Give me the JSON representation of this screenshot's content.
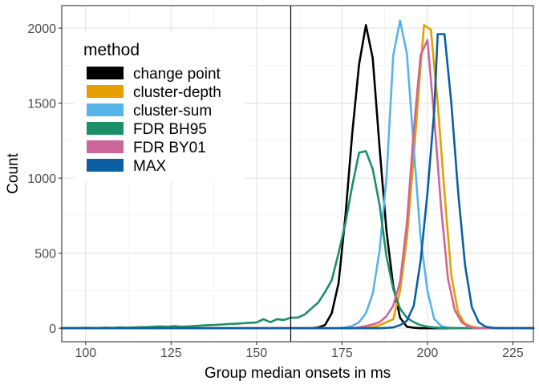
{
  "chart_data": {
    "type": "line",
    "xlabel": "Group median onsets in ms",
    "ylabel": "Count",
    "xlim": [
      93,
      231
    ],
    "ylim": [
      -90,
      2150
    ],
    "x_ticks": [
      100,
      125,
      150,
      175,
      200,
      225
    ],
    "y_ticks": [
      0,
      500,
      1000,
      1500,
      2000
    ],
    "x_tick_labels": [
      "100",
      "125",
      "150",
      "175",
      "200",
      "225"
    ],
    "y_tick_labels": [
      "0",
      "500",
      "1000",
      "1500",
      "2000"
    ],
    "vline": 160,
    "grid": true,
    "legend": {
      "title": "method",
      "placement": "top-left",
      "entries": [
        "change point",
        "cluster-depth",
        "cluster-sum",
        "FDR BH95",
        "FDR BY01",
        "MAX"
      ]
    },
    "series": [
      {
        "name": "change point",
        "color": "#000000",
        "x": [
          93,
          164,
          166,
          168,
          170,
          172,
          174,
          176,
          178,
          180,
          182,
          184,
          186,
          188,
          190,
          192,
          194,
          196,
          198,
          231
        ],
        "y": [
          0,
          0,
          0,
          5,
          20,
          100,
          300,
          750,
          1300,
          1760,
          2020,
          1800,
          1200,
          650,
          280,
          70,
          10,
          3,
          0,
          0
        ]
      },
      {
        "name": "cluster-depth",
        "color": "#E69F00",
        "x": [
          93,
          180,
          182,
          184,
          186,
          188,
          190,
          192,
          194,
          196,
          198,
          199,
          201,
          203,
          205,
          207,
          209,
          211,
          213,
          215,
          231
        ],
        "y": [
          0,
          0,
          2,
          8,
          20,
          40,
          60,
          250,
          600,
          1150,
          1750,
          2020,
          1990,
          1500,
          900,
          350,
          100,
          30,
          10,
          2,
          0
        ]
      },
      {
        "name": "cluster-sum",
        "color": "#56B4E9",
        "x": [
          93,
          174,
          176,
          178,
          180,
          182,
          184,
          186,
          188,
          190,
          192,
          194,
          196,
          198,
          200,
          202,
          204,
          206,
          208,
          231
        ],
        "y": [
          0,
          0,
          5,
          15,
          40,
          100,
          230,
          520,
          1000,
          1820,
          2050,
          1830,
          1200,
          600,
          250,
          60,
          15,
          3,
          0,
          0
        ]
      },
      {
        "name": "FDR BH95",
        "color": "#1B9068",
        "x": [
          93,
          95,
          97,
          100,
          103,
          106,
          108,
          110,
          112,
          115,
          118,
          120,
          122,
          124,
          126,
          128,
          130,
          132,
          134,
          136,
          138,
          140,
          142,
          144,
          146,
          148,
          150,
          152,
          154,
          156,
          158,
          160,
          162,
          164,
          166,
          168,
          170,
          172,
          174,
          176,
          178,
          180,
          182,
          184,
          186,
          188,
          190,
          192,
          194,
          196,
          198,
          200,
          202,
          204,
          206,
          208,
          210,
          212,
          214,
          216,
          231
        ],
        "y": [
          0,
          2,
          0,
          3,
          1,
          4,
          2,
          5,
          3,
          6,
          8,
          10,
          12,
          10,
          14,
          10,
          12,
          15,
          18,
          20,
          22,
          25,
          28,
          30,
          33,
          36,
          38,
          60,
          40,
          60,
          55,
          70,
          70,
          90,
          130,
          170,
          240,
          320,
          500,
          700,
          950,
          1170,
          1180,
          1060,
          820,
          480,
          260,
          130,
          70,
          40,
          20,
          10,
          5,
          2,
          1,
          0,
          0,
          0,
          0,
          0,
          0
        ]
      },
      {
        "name": "FDR BY01",
        "color": "#CC6699",
        "x": [
          93,
          178,
          180,
          182,
          184,
          186,
          188,
          190,
          192,
          194,
          196,
          198,
          200,
          202,
          204,
          206,
          208,
          210,
          212,
          214,
          231
        ],
        "y": [
          0,
          0,
          5,
          15,
          25,
          40,
          80,
          150,
          310,
          700,
          1320,
          1820,
          1920,
          1400,
          800,
          330,
          120,
          40,
          10,
          2,
          0
        ]
      },
      {
        "name": "MAX",
        "color": "#0A5FA3",
        "x": [
          93,
          186,
          188,
          190,
          192,
          194,
          196,
          198,
          200,
          202,
          203,
          205,
          207,
          209,
          211,
          213,
          215,
          217,
          219,
          221,
          231
        ],
        "y": [
          0,
          0,
          2,
          5,
          20,
          50,
          150,
          450,
          900,
          1450,
          1960,
          1960,
          1500,
          900,
          420,
          140,
          40,
          10,
          3,
          0,
          0
        ]
      }
    ]
  }
}
